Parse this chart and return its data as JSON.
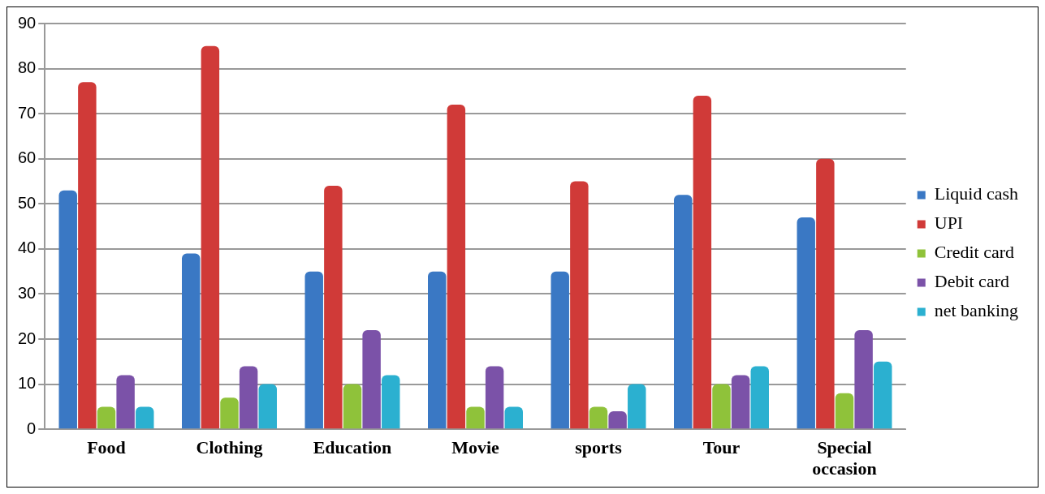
{
  "chart_data": {
    "type": "bar",
    "categories": [
      "Food",
      "Clothing",
      "Education",
      "Movie",
      "sports",
      "Tour",
      "Special occasion"
    ],
    "series": [
      {
        "name": "Liquid cash",
        "color": "#3a78c4",
        "values": [
          53,
          39,
          35,
          35,
          35,
          52,
          47
        ]
      },
      {
        "name": "UPI",
        "color": "#d03a38",
        "values": [
          77,
          85,
          54,
          72,
          55,
          74,
          60
        ]
      },
      {
        "name": "Credit card",
        "color": "#8fc23a",
        "values": [
          5,
          7,
          10,
          5,
          5,
          10,
          8
        ]
      },
      {
        "name": "Debit card",
        "color": "#7b52a8",
        "values": [
          12,
          14,
          22,
          14,
          4,
          12,
          22
        ]
      },
      {
        "name": "net banking",
        "color": "#2bb0d0",
        "values": [
          5,
          10,
          12,
          5,
          10,
          14,
          15
        ]
      }
    ],
    "ylim": [
      0,
      90
    ],
    "yticks": [
      0,
      10,
      20,
      30,
      40,
      50,
      60,
      70,
      80,
      90
    ],
    "grid": "y",
    "legend": "right"
  }
}
